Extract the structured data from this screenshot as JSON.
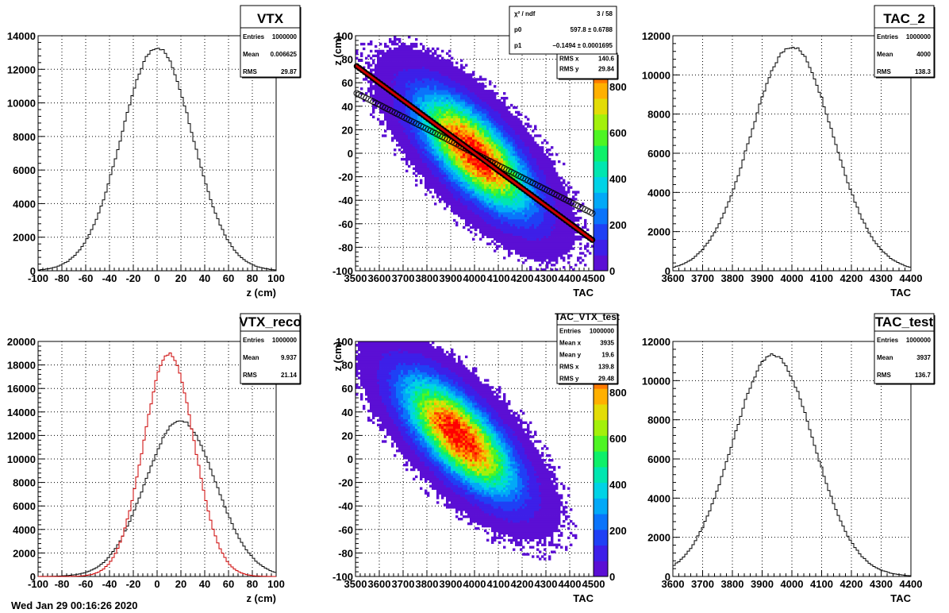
{
  "footer_text": "Wed Jan 29 00:16:26 2020",
  "colors": {
    "fit": "#cc0000",
    "reco": "#cc0000",
    "line": "#000000"
  },
  "chart_data": [
    {
      "id": "vtx",
      "type": "area",
      "stats": {
        "title": "VTX",
        "rows": [
          [
            "Entries",
            "1000000"
          ],
          [
            "Mean",
            "0.006625"
          ],
          [
            "RMS",
            "29.87"
          ]
        ]
      },
      "xlabel": "z (cm)",
      "xlim": [
        -100,
        100
      ],
      "ylim": [
        0,
        14000
      ],
      "xticks": [
        "-100",
        "-80",
        "-60",
        "-40",
        "-20",
        "0",
        "20",
        "40",
        "60",
        "80",
        "100"
      ],
      "yticks": [
        "0",
        "2000",
        "4000",
        "6000",
        "8000",
        "10000",
        "12000",
        "14000"
      ],
      "series": [
        {
          "mean": 0,
          "sigma": 29.87,
          "peak": 13300
        }
      ],
      "grid": true
    },
    {
      "id": "tac_vtx_fit",
      "type": "heatmap",
      "xlabel": "TAC",
      "ylabel": "z (cm)",
      "xlim": [
        3500,
        4500
      ],
      "ylim": [
        -100,
        100
      ],
      "xticks": [
        "3500",
        "3600",
        "3700",
        "3800",
        "3900",
        "4000",
        "4100",
        "4200",
        "4300",
        "4400",
        "4500"
      ],
      "yticks": [
        "-100",
        "-80",
        "-60",
        "-40",
        "-20",
        "0",
        "20",
        "40",
        "60",
        "80",
        "100"
      ],
      "colorbar_ticks": [
        "0",
        "200",
        "400",
        "600",
        "800"
      ],
      "stats": {
        "rows": [
          [
            "RMS x",
            "140.6"
          ],
          [
            "RMS y",
            "29.84"
          ]
        ]
      },
      "fit_box": {
        "rows": [
          [
            "χ² / ndf",
            "3 / 58"
          ],
          [
            "p0",
            "597.8 ± 0.6788"
          ],
          [
            "p1",
            "−0.1494 ± 0.0001695"
          ]
        ]
      },
      "density": {
        "mean_x": 4000,
        "mean_y": 0,
        "rms_x": 140.6,
        "rms_y": 29.84
      },
      "fit": {
        "p0": 597.8,
        "p1": -0.1494
      },
      "profile": {
        "x_from": 3500,
        "x_to": 4500
      },
      "grid": true
    },
    {
      "id": "tac2",
      "type": "area",
      "stats": {
        "title": "TAC_2",
        "rows": [
          [
            "Entries",
            "1000000"
          ],
          [
            "Mean",
            "4000"
          ],
          [
            "RMS",
            "138.3"
          ]
        ]
      },
      "xlabel": "TAC",
      "xlim": [
        3600,
        4400
      ],
      "ylim": [
        0,
        12000
      ],
      "xticks": [
        "3600",
        "3700",
        "3800",
        "3900",
        "4000",
        "4100",
        "4200",
        "4300",
        "4400"
      ],
      "yticks": [
        "0",
        "2000",
        "4000",
        "6000",
        "8000",
        "10000",
        "12000"
      ],
      "series": [
        {
          "mean": 4000,
          "sigma": 138.3,
          "peak": 11450
        }
      ],
      "grid": true
    },
    {
      "id": "vtx_reco",
      "type": "area",
      "stats": {
        "title": "VTX_reco",
        "rows": [
          [
            "Entries",
            "1000000"
          ],
          [
            "Mean",
            "9.937"
          ],
          [
            "RMS",
            "21.14"
          ]
        ]
      },
      "xlabel": "z (cm)",
      "xlim": [
        -100,
        100
      ],
      "ylim": [
        0,
        20000
      ],
      "xticks": [
        "-100",
        "-80",
        "-60",
        "-40",
        "-20",
        "0",
        "20",
        "40",
        "60",
        "80",
        "100"
      ],
      "yticks": [
        "0",
        "2000",
        "4000",
        "6000",
        "8000",
        "10000",
        "12000",
        "14000",
        "16000",
        "18000",
        "20000"
      ],
      "series": [
        {
          "mean": 19.6,
          "sigma": 29.5,
          "peak": 13300,
          "color": "#000000"
        },
        {
          "mean": 9.937,
          "sigma": 21.14,
          "peak": 18950,
          "color": "#cc0000"
        }
      ],
      "grid": true
    },
    {
      "id": "tac_vtx_test",
      "type": "heatmap",
      "xlabel": "TAC",
      "ylabel": "z (cm)",
      "xlim": [
        3500,
        4500
      ],
      "ylim": [
        -100,
        100
      ],
      "xticks": [
        "3500",
        "3600",
        "3700",
        "3800",
        "3900",
        "4000",
        "4100",
        "4200",
        "4300",
        "4400",
        "4500"
      ],
      "yticks": [
        "-100",
        "-80",
        "-60",
        "-40",
        "-20",
        "0",
        "20",
        "40",
        "60",
        "80",
        "100"
      ],
      "colorbar_ticks": [
        "0",
        "200",
        "400",
        "600",
        "800"
      ],
      "stats": {
        "title": "TAC_VTX_test",
        "rows": [
          [
            "Entries",
            "1000000"
          ],
          [
            "Mean x",
            "3935"
          ],
          [
            "Mean y",
            "19.6"
          ],
          [
            "RMS x",
            "139.8"
          ],
          [
            "RMS y",
            "29.48"
          ]
        ]
      },
      "density": {
        "mean_x": 3935,
        "mean_y": 19.6,
        "rms_x": 139.8,
        "rms_y": 29.48
      },
      "grid": true
    },
    {
      "id": "tac_test",
      "type": "area",
      "stats": {
        "title": "TAC_test",
        "rows": [
          [
            "Entries",
            "1000000"
          ],
          [
            "Mean",
            "3937"
          ],
          [
            "RMS",
            "136.7"
          ]
        ]
      },
      "xlabel": "TAC",
      "xlim": [
        3600,
        4400
      ],
      "ylim": [
        0,
        12000
      ],
      "xticks": [
        "3600",
        "3700",
        "3800",
        "3900",
        "4000",
        "4100",
        "4200",
        "4300",
        "4400"
      ],
      "yticks": [
        "0",
        "2000",
        "4000",
        "6000",
        "8000",
        "10000",
        "12000"
      ],
      "series": [
        {
          "mean": 3937,
          "sigma": 136.7,
          "peak": 11300
        }
      ],
      "grid": true
    }
  ]
}
